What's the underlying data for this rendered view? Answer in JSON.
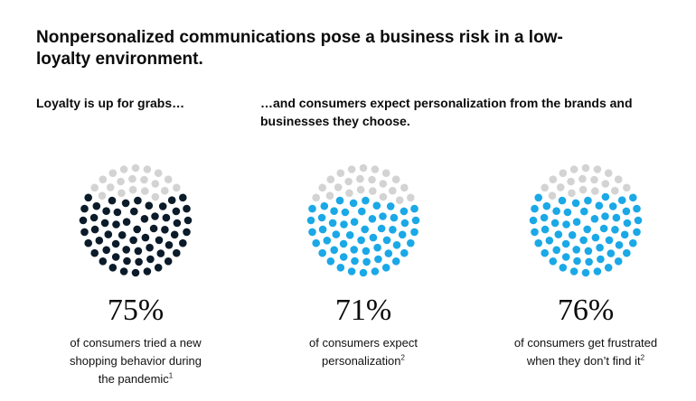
{
  "title": "Nonpersonalized communications pose a business risk in a low-loyalty environment.",
  "subtitle_left": "Loyalty is up for grabs…",
  "subtitle_right": "…and consumers expect personalization from the brands and businesses they choose.",
  "colors": {
    "inactive": "#d3d3d3",
    "dark": "#0c1b2a",
    "blue": "#1ba8e6"
  },
  "chart_data": [
    {
      "type": "dot-circle",
      "values": [
        75
      ],
      "value_label": "75%",
      "caption": "of consumers tried a new shopping behavior during the pandemic",
      "footnote": "1",
      "color": "#0c1b2a"
    },
    {
      "type": "dot-circle",
      "values": [
        71
      ],
      "value_label": "71%",
      "caption": "of consumers expect personalization",
      "footnote": "2",
      "color": "#1ba8e6"
    },
    {
      "type": "dot-circle",
      "values": [
        76
      ],
      "value_label": "76%",
      "caption": "of consumers get frustrated when they don’t find it",
      "footnote": "2",
      "color": "#1ba8e6"
    }
  ]
}
